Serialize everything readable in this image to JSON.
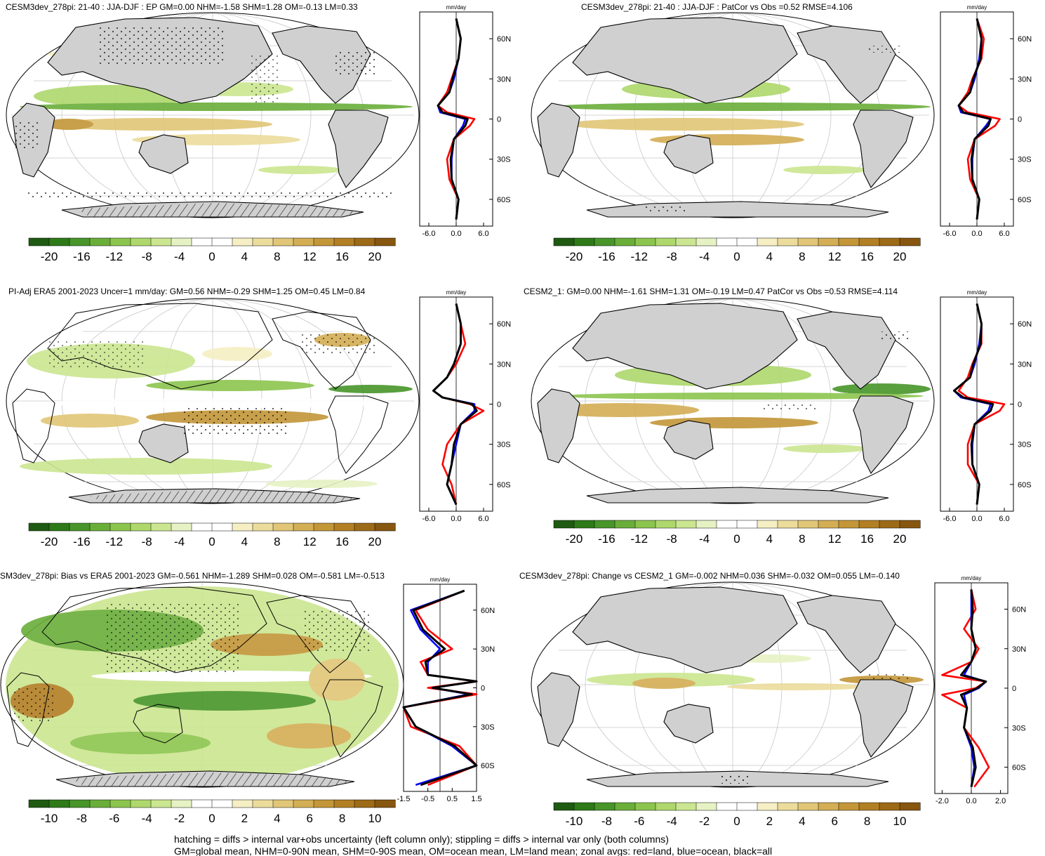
{
  "footer": {
    "line1": "hatching = diffs > internal var+obs uncertainty (left column only); stippling = diffs > internal var only (both columns)",
    "line2": "GM=global mean, NHM=0-90N mean, SHM=0-90S mean, OM=ocean mean, LM=land mean; zonal avgs: red=land, blue=ocean, black=all"
  },
  "colors": {
    "land": "#d0d0d0",
    "ocean": "#ffffff",
    "zonal_land": "#ff0000",
    "zonal_ocean": "#0000ff",
    "zonal_all": "#000000"
  },
  "colorbar_a": {
    "colors": [
      "#1f5a12",
      "#2e7a18",
      "#48952a",
      "#6aae3a",
      "#8cc54e",
      "#aed86c",
      "#cbe690",
      "#e6f2c4",
      "#ffffff",
      "#ffffff",
      "#f6efc4",
      "#ecdc9c",
      "#e0c676",
      "#d3ae55",
      "#c39638",
      "#b27f24",
      "#9d6a17",
      "#87560f"
    ],
    "labels": [
      "-20",
      "-16",
      "-12",
      "-8",
      "-4",
      "0",
      "4",
      "8",
      "12",
      "16",
      "20"
    ]
  },
  "colorbar_b": {
    "colors": [
      "#1f5a12",
      "#2e7a18",
      "#48952a",
      "#6aae3a",
      "#8cc54e",
      "#aed86c",
      "#cbe690",
      "#e6f2c4",
      "#ffffff",
      "#ffffff",
      "#f6efc4",
      "#ecdc9c",
      "#e0c676",
      "#d3ae55",
      "#c39638",
      "#b27f24",
      "#9d6a17",
      "#87560f"
    ],
    "labels": [
      "-10",
      "-8",
      "-6",
      "-4",
      "-2",
      "0",
      "2",
      "4",
      "6",
      "8",
      "10"
    ]
  },
  "panels": [
    {
      "title": "CESM3dev_278pi: 21-40 : JJA-DJF : EP GM=0.00 NHM=-1.58 SHM=1.28 OM=-0.13 LM=0.33",
      "unit": "mm/day",
      "lat_labels": [
        "60N",
        "30N",
        "0",
        "30S",
        "60S"
      ],
      "x_labels": [
        "-6.0",
        "0.0",
        "6.0"
      ],
      "stats": {
        "GM": 0.0,
        "NHM": -1.58,
        "SHM": 1.28,
        "OM": -0.13,
        "LM": 0.33
      }
    },
    {
      "title": "CESM3dev_278pi: 21-40 : JJA-DJF : PatCor vs Obs =0.52 RMSE=4.106",
      "unit": "mm/day",
      "lat_labels": [
        "60N",
        "30N",
        "0",
        "30S",
        "60S"
      ],
      "x_labels": [
        "-6.0",
        "0.0",
        "6.0"
      ],
      "stats": {
        "PatCor": 0.52,
        "RMSE": 4.106
      }
    },
    {
      "title": "PI-Adj ERA5 2001-2023 Uncer=1 mm/day: GM=0.56 NHM=-0.29 SHM=1.25 OM=0.45 LM=0.84",
      "unit": "mm/day",
      "lat_labels": [
        "60N",
        "30N",
        "0",
        "30S",
        "60S"
      ],
      "x_labels": [
        "-6.0",
        "0.0",
        "6.0"
      ],
      "stats": {
        "GM": 0.56,
        "NHM": -0.29,
        "SHM": 1.25,
        "OM": 0.45,
        "LM": 0.84
      }
    },
    {
      "title": "CESM2_1: GM=0.00 NHM=-1.61 SHM=1.31 OM=-0.19 LM=0.47 PatCor vs Obs =0.53 RMSE=4.114",
      "unit": "mm/day",
      "lat_labels": [
        "60N",
        "30N",
        "0",
        "30S",
        "60S"
      ],
      "x_labels": [
        "-6.0",
        "0.0",
        "6.0"
      ],
      "stats": {
        "GM": 0.0,
        "NHM": -1.61,
        "SHM": 1.31,
        "OM": -0.19,
        "LM": 0.47,
        "PatCor": 0.53,
        "RMSE": 4.114
      }
    },
    {
      "title": "SM3dev_278pi: Bias vs ERA5 2001-2023 GM=-0.561 NHM=-1.289 SHM=0.028 OM=-0.581 LM=-0.513",
      "unit": "mm/day",
      "lat_labels": [
        "60N",
        "30N",
        "0",
        "30S",
        "60S"
      ],
      "x_labels": [
        "-1.5",
        "-0.5",
        "0.5",
        "1.5"
      ],
      "stats": {
        "GM": -0.561,
        "NHM": -1.289,
        "SHM": 0.028,
        "OM": -0.581,
        "LM": -0.513
      }
    },
    {
      "title": "CESM3dev_278pi: Change vs CESM2_1 GM=-0.002 NHM=0.036 SHM=-0.032 OM=0.055 LM=-0.140",
      "unit": "mm/day",
      "lat_labels": [
        "60N",
        "30N",
        "0",
        "30S",
        "60S"
      ],
      "x_labels": [
        "-2.0",
        "0.0",
        "2.0"
      ],
      "stats": {
        "GM": -0.002,
        "NHM": 0.036,
        "SHM": -0.032,
        "OM": 0.055,
        "LM": -0.14
      }
    }
  ],
  "chart_data": [
    {
      "type": "line",
      "title": "CESM3dev_278pi: 21-40 : JJA-DJF : EP",
      "ylabel": "",
      "xlabel": "mm/day",
      "xlim": [
        -8,
        8
      ],
      "ylim": [
        -80,
        80
      ],
      "y": [
        -75,
        -60,
        -45,
        -30,
        -15,
        -5,
        0,
        5,
        10,
        20,
        30,
        45,
        60,
        75
      ],
      "series": [
        {
          "color": "#ff0000",
          "values": [
            0,
            0.5,
            -1.5,
            -2,
            -0.5,
            3,
            4,
            -2,
            -4,
            -2,
            -1,
            0.5,
            1,
            0
          ]
        },
        {
          "color": "#0000ff",
          "values": [
            0,
            0.5,
            -1,
            -1,
            -0.5,
            1.5,
            2,
            -3.5,
            -4,
            -1.5,
            -0.5,
            0.5,
            1,
            0
          ]
        },
        {
          "color": "#000000",
          "values": [
            0,
            0.5,
            -1,
            -1.2,
            -0.5,
            2,
            2.5,
            -3,
            -4,
            -1.5,
            -0.8,
            0.5,
            1,
            0
          ]
        }
      ]
    },
    {
      "type": "line",
      "title": "CESM3dev_278pi: 21-40 : JJA-DJF",
      "ylabel": "",
      "xlabel": "mm/day",
      "xlim": [
        -8,
        8
      ],
      "ylim": [
        -80,
        80
      ],
      "y": [
        -75,
        -60,
        -45,
        -30,
        -15,
        -5,
        0,
        5,
        10,
        20,
        30,
        45,
        60,
        75
      ],
      "series": [
        {
          "color": "#ff0000",
          "values": [
            0,
            0.5,
            -1.5,
            -2,
            -0.5,
            4,
            5,
            -2,
            -4,
            -2,
            -1,
            1,
            1.5,
            0
          ]
        },
        {
          "color": "#0000ff",
          "values": [
            0,
            0.5,
            -1,
            -1,
            -0.5,
            2,
            3,
            -3.5,
            -4,
            -1.5,
            -0.5,
            0.5,
            1,
            0
          ]
        },
        {
          "color": "#000000",
          "values": [
            0,
            0.5,
            -1,
            -1.2,
            -0.5,
            2.5,
            3,
            -3,
            -4,
            -1.5,
            -0.8,
            0.8,
            1,
            0
          ]
        }
      ]
    },
    {
      "type": "line",
      "title": "PI-Adj ERA5 2001-2023",
      "ylabel": "",
      "xlabel": "mm/day",
      "xlim": [
        -8,
        8
      ],
      "ylim": [
        -80,
        80
      ],
      "y": [
        -75,
        -60,
        -45,
        -30,
        -15,
        -5,
        0,
        5,
        10,
        20,
        30,
        45,
        60,
        75
      ],
      "series": [
        {
          "color": "#ff0000",
          "values": [
            0,
            -1,
            -3,
            -2,
            1,
            6,
            3,
            -3,
            -5,
            -2,
            0,
            2,
            1,
            0
          ]
        },
        {
          "color": "#0000ff",
          "values": [
            0,
            -2,
            -1,
            0,
            1,
            4,
            4,
            -3,
            -5,
            -2,
            -0.5,
            1,
            1,
            0
          ]
        },
        {
          "color": "#000000",
          "values": [
            0,
            -2,
            -1,
            -0.5,
            1,
            4.5,
            3.5,
            -3,
            -5,
            -2,
            -0.5,
            1,
            1,
            0
          ]
        }
      ]
    },
    {
      "type": "line",
      "title": "CESM2_1",
      "ylabel": "",
      "xlabel": "mm/day",
      "xlim": [
        -8,
        8
      ],
      "ylim": [
        -80,
        80
      ],
      "y": [
        -75,
        -60,
        -45,
        -30,
        -15,
        -5,
        0,
        5,
        10,
        20,
        30,
        45,
        60,
        75
      ],
      "series": [
        {
          "color": "#ff0000",
          "values": [
            0,
            0.5,
            -2,
            -2,
            -0.5,
            5,
            6,
            -2,
            -4,
            -2,
            -1,
            1,
            1,
            0
          ]
        },
        {
          "color": "#0000ff",
          "values": [
            0,
            0.5,
            -1,
            -1,
            -0.5,
            2.5,
            3,
            -3.5,
            -5,
            -1.5,
            -0.5,
            0.5,
            1,
            0
          ]
        },
        {
          "color": "#000000",
          "values": [
            0,
            0.5,
            -1,
            -1.2,
            -0.5,
            3,
            3.5,
            -3,
            -5,
            -1.5,
            -0.8,
            0.8,
            1,
            0
          ]
        }
      ]
    },
    {
      "type": "line",
      "title": "SM3dev_278pi: Bias vs ERA5 2001-2023",
      "ylabel": "",
      "xlabel": "mm/day",
      "xlim": [
        -1.5,
        1.5
      ],
      "ylim": [
        -80,
        80
      ],
      "y": [
        -75,
        -60,
        -45,
        -30,
        -15,
        -5,
        0,
        5,
        10,
        20,
        30,
        45,
        60,
        75
      ],
      "series": [
        {
          "color": "#ff0000",
          "values": [
            -0.5,
            1.5,
            0.8,
            -1.2,
            -1.5,
            1.5,
            -0.5,
            1.5,
            -0.5,
            -0.8,
            0.5,
            -0.5,
            -1,
            1
          ]
        },
        {
          "color": "#0000ff",
          "values": [
            -1,
            1.5,
            0.5,
            -1,
            -1.5,
            1.2,
            -0.3,
            1.5,
            -0.5,
            -0.5,
            0,
            -0.8,
            -1.2,
            1
          ]
        },
        {
          "color": "#000000",
          "values": [
            -0.8,
            1.5,
            0.6,
            -1,
            -1.5,
            1.3,
            -0.3,
            1.5,
            -0.5,
            -0.6,
            0.2,
            -0.7,
            -1.1,
            1
          ]
        }
      ]
    },
    {
      "type": "line",
      "title": "CESM3dev_278pi: Change vs CESM2_1",
      "ylabel": "",
      "xlabel": "mm/day",
      "xlim": [
        -2.5,
        2.5
      ],
      "ylim": [
        -80,
        80
      ],
      "y": [
        -75,
        -60,
        -45,
        -30,
        -15,
        -5,
        0,
        5,
        10,
        20,
        30,
        45,
        60,
        75
      ],
      "series": [
        {
          "color": "#ff0000",
          "values": [
            0.2,
            1.2,
            0.5,
            -0.5,
            -0.3,
            -2,
            0.3,
            1,
            -2,
            0,
            0.5,
            -0.5,
            0.3,
            0
          ]
        },
        {
          "color": "#0000ff",
          "values": [
            0,
            0.2,
            0,
            -0.5,
            -0.3,
            -0.5,
            0.5,
            1,
            -0.5,
            0,
            0.3,
            0,
            0,
            0
          ]
        },
        {
          "color": "#000000",
          "values": [
            0,
            0.3,
            0.1,
            -0.5,
            -0.3,
            -0.7,
            0.4,
            1,
            -0.7,
            0,
            0.3,
            0,
            0.1,
            0
          ]
        }
      ]
    }
  ]
}
